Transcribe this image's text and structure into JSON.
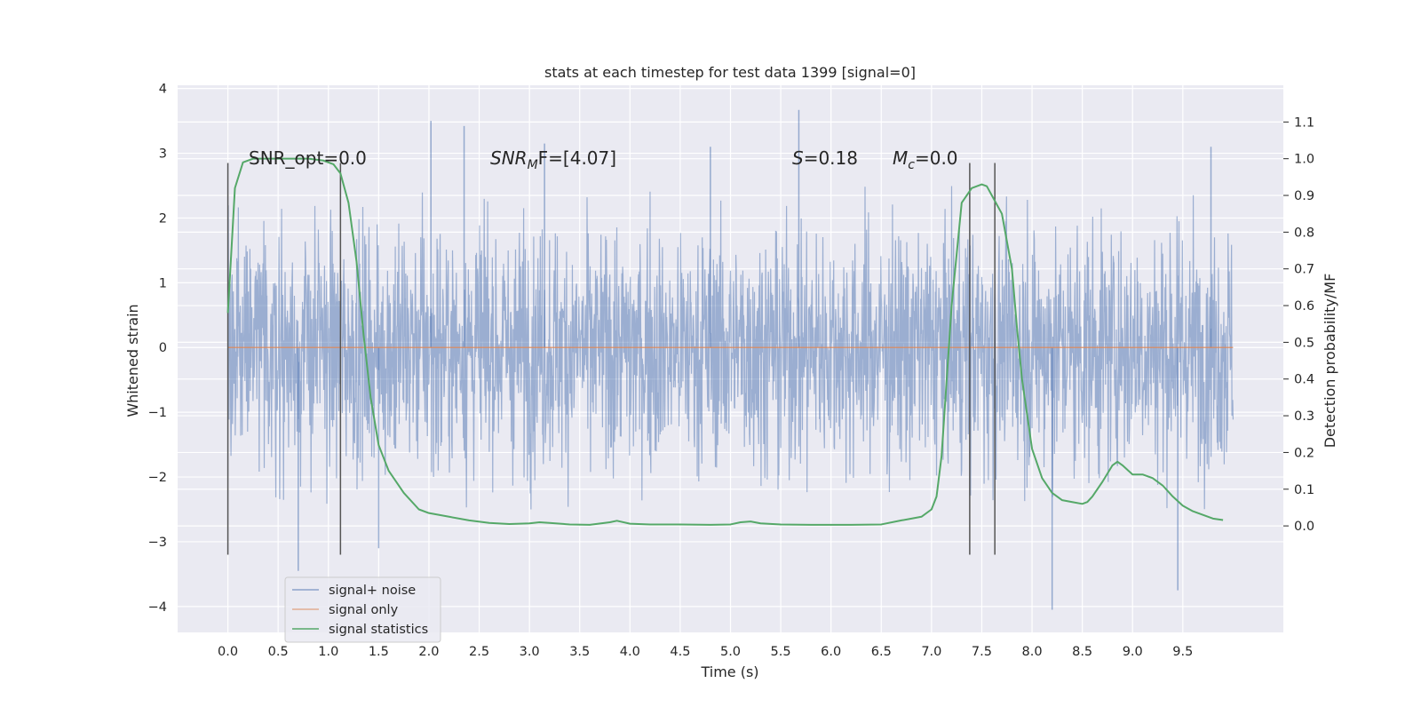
{
  "chart_data": {
    "type": "line",
    "title": "stats at each timestep for test data 1399 [signal=0]",
    "xlabel": "Time (s)",
    "ylabel": "Whitened strain",
    "y2label": "Detection probability/MF",
    "xlim": [
      -0.5,
      10.5
    ],
    "ylim": [
      -4.4,
      4.05
    ],
    "y2lim": [
      -0.29,
      1.2
    ],
    "x_ticks": [
      0.0,
      0.5,
      1.0,
      1.5,
      2.0,
      2.5,
      3.0,
      3.5,
      4.0,
      4.5,
      5.0,
      5.5,
      6.0,
      6.5,
      7.0,
      7.5,
      8.0,
      8.5,
      9.0,
      9.5
    ],
    "x_tick_labels": [
      "0.0",
      "0.5",
      "1.0",
      "1.5",
      "2.0",
      "2.5",
      "3.0",
      "3.5",
      "4.0",
      "4.5",
      "5.0",
      "5.5",
      "6.0",
      "6.5",
      "7.0",
      "7.5",
      "8.0",
      "8.5",
      "9.0",
      "9.5"
    ],
    "y_ticks": [
      4,
      3,
      2,
      1,
      0,
      -1,
      -2,
      -3,
      -4
    ],
    "y_tick_labels": [
      "4",
      "3",
      "2",
      "1",
      "0",
      "−1",
      "−2",
      "−3",
      "−4"
    ],
    "y2_ticks": [
      1.1,
      1.0,
      0.9,
      0.8,
      0.7,
      0.6,
      0.5,
      0.4,
      0.3,
      0.2,
      0.1,
      0.0
    ],
    "y2_tick_labels": [
      "1.1",
      "1.0",
      "0.9",
      "0.8",
      "0.7",
      "0.6",
      "0.5",
      "0.4",
      "0.3",
      "0.2",
      "0.1",
      "0.0"
    ],
    "grid": true,
    "legend_placement": "lower-left",
    "noise_envelope": {
      "x_range": [
        0.0,
        10.0
      ],
      "core_amplitude": 1.5,
      "typical_peak": 2.2,
      "max": 3.67,
      "min": -4.05
    },
    "noise_spikes": [
      {
        "x": 0.7,
        "y": -3.45
      },
      {
        "x": 2.02,
        "y": 3.5
      },
      {
        "x": 2.35,
        "y": 3.42
      },
      {
        "x": 5.68,
        "y": 3.67
      },
      {
        "x": 8.2,
        "y": -4.05
      },
      {
        "x": 9.45,
        "y": -3.75
      },
      {
        "x": 9.78,
        "y": 3.1
      },
      {
        "x": 3.15,
        "y": 3.15
      },
      {
        "x": 4.8,
        "y": 3.1
      },
      {
        "x": 1.5,
        "y": -3.1
      }
    ],
    "series": [
      {
        "name": "signal+ noise",
        "color": "#4c72b0",
        "axis": "left",
        "x": [
          0.0,
          10.0
        ],
        "values": [
          0.0,
          0.0
        ]
      },
      {
        "name": "signal only",
        "color": "#dd8452",
        "axis": "left",
        "x": [
          0.0,
          10.0
        ],
        "values": [
          0.0,
          0.0
        ]
      },
      {
        "name": "signal statistics",
        "color": "#55a868",
        "axis": "right",
        "x": [
          0.0,
          0.07,
          0.15,
          0.25,
          0.4,
          0.6,
          0.8,
          0.95,
          1.05,
          1.12,
          1.2,
          1.28,
          1.35,
          1.42,
          1.5,
          1.6,
          1.75,
          1.9,
          2.0,
          2.2,
          2.4,
          2.6,
          2.8,
          3.0,
          3.1,
          3.2,
          3.4,
          3.6,
          3.8,
          3.87,
          4.0,
          4.2,
          4.5,
          4.8,
          5.0,
          5.1,
          5.2,
          5.3,
          5.5,
          5.8,
          6.0,
          6.2,
          6.5,
          6.7,
          6.8,
          6.9,
          7.0,
          7.05,
          7.1,
          7.2,
          7.3,
          7.4,
          7.45,
          7.5,
          7.55,
          7.6,
          7.7,
          7.8,
          7.85,
          7.9,
          8.0,
          8.1,
          8.2,
          8.3,
          8.4,
          8.5,
          8.55,
          8.6,
          8.7,
          8.8,
          8.85,
          8.9,
          9.0,
          9.1,
          9.2,
          9.3,
          9.4,
          9.5,
          9.6,
          9.7,
          9.8,
          9.9
        ],
        "values": [
          0.58,
          0.92,
          0.99,
          1.0,
          1.0,
          1.0,
          1.0,
          0.995,
          0.985,
          0.96,
          0.88,
          0.72,
          0.52,
          0.35,
          0.22,
          0.15,
          0.09,
          0.045,
          0.035,
          0.025,
          0.015,
          0.008,
          0.005,
          0.007,
          0.01,
          0.008,
          0.004,
          0.003,
          0.01,
          0.014,
          0.006,
          0.004,
          0.004,
          0.003,
          0.004,
          0.01,
          0.012,
          0.007,
          0.004,
          0.003,
          0.003,
          0.003,
          0.004,
          0.015,
          0.02,
          0.025,
          0.045,
          0.08,
          0.19,
          0.6,
          0.88,
          0.92,
          0.925,
          0.93,
          0.925,
          0.9,
          0.85,
          0.7,
          0.54,
          0.4,
          0.21,
          0.13,
          0.09,
          0.07,
          0.065,
          0.06,
          0.065,
          0.08,
          0.12,
          0.165,
          0.175,
          0.165,
          0.14,
          0.14,
          0.13,
          0.11,
          0.08,
          0.055,
          0.04,
          0.03,
          0.02,
          0.016
        ]
      }
    ],
    "vertical_markers": [
      {
        "x": 0.0,
        "y_top": 2.85,
        "y_bottom": -3.2
      },
      {
        "x": 1.12,
        "y_top": 2.85,
        "y_bottom": -3.2
      },
      {
        "x": 7.38,
        "y_top": 2.85,
        "y_bottom": -3.2
      },
      {
        "x": 7.63,
        "y_top": 2.85,
        "y_bottom": -3.2
      }
    ],
    "annotations": {
      "snr_opt": "SNR_opt=0.0",
      "snr_mf_main": "SNR",
      "snr_mf_sub": "M",
      "snr_mf_rest": "F=[4.07]",
      "s_var": "S",
      "s_value": "=0.18",
      "mc_var": "M",
      "mc_sub": "c",
      "mc_value": "=0.0"
    },
    "colors": {
      "background": "#eaeaf2",
      "grid": "#ffffff",
      "marker": "#555555"
    }
  }
}
